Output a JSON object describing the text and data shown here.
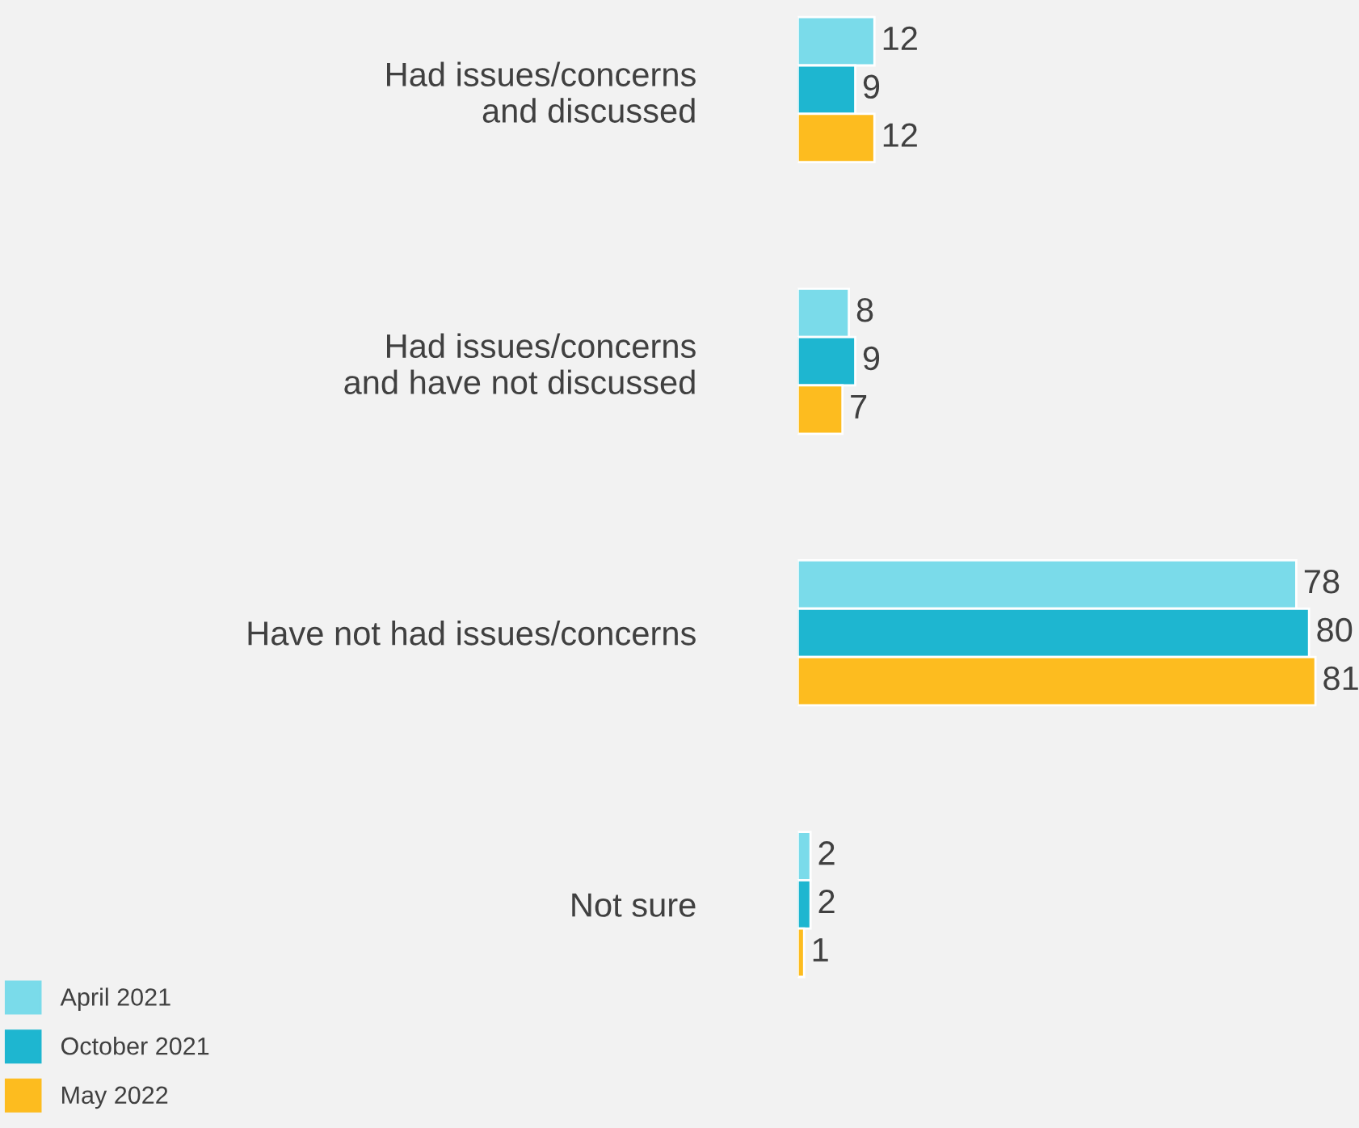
{
  "chart_data": {
    "type": "bar",
    "orientation": "horizontal",
    "categories": [
      "Had issues/concerns\nand discussed",
      "Had issues/concerns\nand have not discussed",
      "Have not had issues/concerns",
      "Not sure"
    ],
    "series": [
      {
        "name": "April 2021",
        "color": "#7adbea",
        "values": [
          12,
          8,
          78,
          2
        ]
      },
      {
        "name": "October 2021",
        "color": "#1eb6d0",
        "values": [
          9,
          9,
          80,
          2
        ]
      },
      {
        "name": "May 2022",
        "color": "#fdbc1f",
        "values": [
          12,
          7,
          81,
          1
        ]
      }
    ],
    "data_labels": true,
    "legend": "bottom left",
    "grid": false
  }
}
